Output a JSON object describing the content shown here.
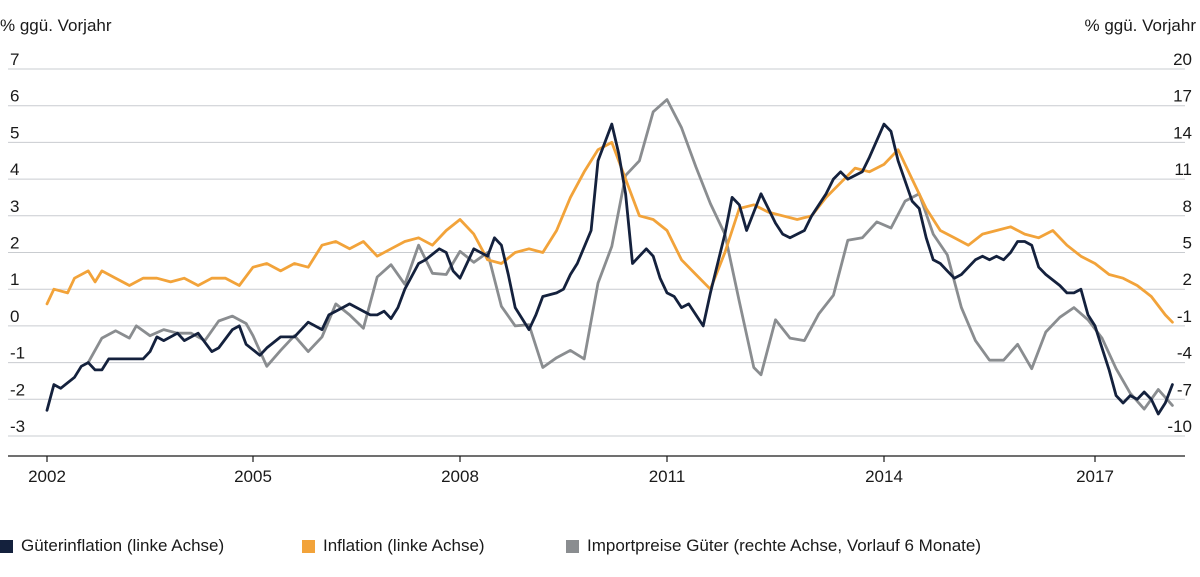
{
  "chart_data": {
    "type": "line",
    "left_axis_title": "% ggü. Vorjahr",
    "right_axis_title": "% ggü. Vorjahr",
    "xlim": [
      2002,
      2018.2
    ],
    "ylim_left": [
      -3,
      7
    ],
    "ylim_right": [
      -10,
      20
    ],
    "x_ticks": [
      "2002",
      "2005",
      "2008",
      "2011",
      "2014",
      "2017"
    ],
    "y_ticks_left": [
      "7",
      "6",
      "5",
      "4",
      "3",
      "2",
      "1",
      "0",
      "-1",
      "-2",
      "-3"
    ],
    "y_ticks_right": [
      "20",
      "17",
      "14",
      "11",
      "8",
      "5",
      "2",
      "-1",
      "-4",
      "-7",
      "-10"
    ],
    "grid": true,
    "legend_position": "bottom",
    "series": [
      {
        "name": "Güterinflation (linke Achse)",
        "axis": "left",
        "color": "#14213d",
        "points": [
          [
            2002.0,
            -2.3
          ],
          [
            2002.1,
            -1.6
          ],
          [
            2002.2,
            -1.7
          ],
          [
            2002.4,
            -1.4
          ],
          [
            2002.5,
            -1.1
          ],
          [
            2002.6,
            -1.0
          ],
          [
            2002.7,
            -1.2
          ],
          [
            2002.8,
            -1.2
          ],
          [
            2002.9,
            -0.9
          ],
          [
            2003.0,
            -0.9
          ],
          [
            2003.2,
            -0.9
          ],
          [
            2003.4,
            -0.9
          ],
          [
            2003.5,
            -0.7
          ],
          [
            2003.6,
            -0.3
          ],
          [
            2003.7,
            -0.4
          ],
          [
            2003.9,
            -0.2
          ],
          [
            2004.0,
            -0.4
          ],
          [
            2004.2,
            -0.2
          ],
          [
            2004.4,
            -0.7
          ],
          [
            2004.5,
            -0.6
          ],
          [
            2004.7,
            -0.1
          ],
          [
            2004.8,
            0.0
          ],
          [
            2004.9,
            -0.5
          ],
          [
            2005.1,
            -0.8
          ],
          [
            2005.2,
            -0.6
          ],
          [
            2005.4,
            -0.3
          ],
          [
            2005.6,
            -0.3
          ],
          [
            2005.7,
            -0.1
          ],
          [
            2005.8,
            0.1
          ],
          [
            2006.0,
            -0.1
          ],
          [
            2006.1,
            0.3
          ],
          [
            2006.3,
            0.5
          ],
          [
            2006.4,
            0.6
          ],
          [
            2006.6,
            0.4
          ],
          [
            2006.7,
            0.3
          ],
          [
            2006.8,
            0.3
          ],
          [
            2006.9,
            0.4
          ],
          [
            2007.0,
            0.2
          ],
          [
            2007.1,
            0.5
          ],
          [
            2007.2,
            1.0
          ],
          [
            2007.4,
            1.7
          ],
          [
            2007.5,
            1.8
          ],
          [
            2007.7,
            2.1
          ],
          [
            2007.8,
            2.0
          ],
          [
            2007.9,
            1.5
          ],
          [
            2008.0,
            1.3
          ],
          [
            2008.1,
            1.7
          ],
          [
            2008.2,
            2.1
          ],
          [
            2008.4,
            1.9
          ],
          [
            2008.5,
            2.4
          ],
          [
            2008.6,
            2.2
          ],
          [
            2008.7,
            1.4
          ],
          [
            2008.8,
            0.5
          ],
          [
            2008.9,
            0.2
          ],
          [
            2009.0,
            -0.1
          ],
          [
            2009.1,
            0.3
          ],
          [
            2009.2,
            0.8
          ],
          [
            2009.4,
            0.9
          ],
          [
            2009.5,
            1.0
          ],
          [
            2009.6,
            1.4
          ],
          [
            2009.7,
            1.7
          ],
          [
            2009.9,
            2.6
          ],
          [
            2010.0,
            4.5
          ],
          [
            2010.2,
            5.5
          ],
          [
            2010.3,
            4.7
          ],
          [
            2010.4,
            3.6
          ],
          [
            2010.5,
            1.7
          ],
          [
            2010.7,
            2.1
          ],
          [
            2010.8,
            1.9
          ],
          [
            2010.9,
            1.3
          ],
          [
            2011.0,
            0.9
          ],
          [
            2011.1,
            0.8
          ],
          [
            2011.2,
            0.5
          ],
          [
            2011.3,
            0.6
          ],
          [
            2011.5,
            0.0
          ],
          [
            2011.6,
            0.9
          ],
          [
            2011.8,
            2.5
          ],
          [
            2011.9,
            3.5
          ],
          [
            2012.0,
            3.3
          ],
          [
            2012.1,
            2.6
          ],
          [
            2012.2,
            3.1
          ],
          [
            2012.3,
            3.6
          ],
          [
            2012.4,
            3.2
          ],
          [
            2012.5,
            2.8
          ],
          [
            2012.6,
            2.5
          ],
          [
            2012.7,
            2.4
          ],
          [
            2012.8,
            2.5
          ],
          [
            2012.9,
            2.6
          ],
          [
            2013.0,
            3.0
          ],
          [
            2013.2,
            3.6
          ],
          [
            2013.3,
            4.0
          ],
          [
            2013.4,
            4.2
          ],
          [
            2013.5,
            4.0
          ],
          [
            2013.7,
            4.2
          ],
          [
            2013.8,
            4.6
          ],
          [
            2014.0,
            5.5
          ],
          [
            2014.1,
            5.3
          ],
          [
            2014.2,
            4.5
          ],
          [
            2014.4,
            3.4
          ],
          [
            2014.5,
            3.2
          ],
          [
            2014.6,
            2.4
          ],
          [
            2014.7,
            1.8
          ],
          [
            2014.8,
            1.7
          ],
          [
            2014.9,
            1.5
          ],
          [
            2015.0,
            1.3
          ],
          [
            2015.1,
            1.4
          ],
          [
            2015.3,
            1.8
          ],
          [
            2015.4,
            1.9
          ],
          [
            2015.5,
            1.8
          ],
          [
            2015.6,
            1.9
          ],
          [
            2015.7,
            1.8
          ],
          [
            2015.8,
            2.0
          ],
          [
            2015.9,
            2.3
          ],
          [
            2016.0,
            2.3
          ],
          [
            2016.1,
            2.2
          ],
          [
            2016.2,
            1.6
          ],
          [
            2016.3,
            1.4
          ],
          [
            2016.5,
            1.1
          ],
          [
            2016.6,
            0.9
          ],
          [
            2016.7,
            0.9
          ],
          [
            2016.8,
            1.0
          ],
          [
            2016.9,
            0.3
          ],
          [
            2017.0,
            0.0
          ],
          [
            2017.1,
            -0.6
          ],
          [
            2017.2,
            -1.2
          ],
          [
            2017.3,
            -1.9
          ],
          [
            2017.4,
            -2.1
          ],
          [
            2017.5,
            -1.9
          ],
          [
            2017.6,
            -2.0
          ],
          [
            2017.7,
            -1.8
          ],
          [
            2017.8,
            -2.0
          ],
          [
            2017.9,
            -2.4
          ],
          [
            2018.0,
            -2.1
          ],
          [
            2018.1,
            -1.6
          ]
        ]
      },
      {
        "name": "Inflation (linke Achse)",
        "axis": "left",
        "color": "#f2a33a",
        "points": [
          [
            2002.0,
            0.6
          ],
          [
            2002.1,
            1.0
          ],
          [
            2002.3,
            0.9
          ],
          [
            2002.4,
            1.3
          ],
          [
            2002.6,
            1.5
          ],
          [
            2002.7,
            1.2
          ],
          [
            2002.8,
            1.5
          ],
          [
            2003.0,
            1.3
          ],
          [
            2003.2,
            1.1
          ],
          [
            2003.4,
            1.3
          ],
          [
            2003.6,
            1.3
          ],
          [
            2003.8,
            1.2
          ],
          [
            2004.0,
            1.3
          ],
          [
            2004.2,
            1.1
          ],
          [
            2004.4,
            1.3
          ],
          [
            2004.6,
            1.3
          ],
          [
            2004.8,
            1.1
          ],
          [
            2005.0,
            1.6
          ],
          [
            2005.2,
            1.7
          ],
          [
            2005.4,
            1.5
          ],
          [
            2005.6,
            1.7
          ],
          [
            2005.8,
            1.6
          ],
          [
            2006.0,
            2.2
          ],
          [
            2006.2,
            2.3
          ],
          [
            2006.4,
            2.1
          ],
          [
            2006.6,
            2.3
          ],
          [
            2006.8,
            1.9
          ],
          [
            2007.0,
            2.1
          ],
          [
            2007.2,
            2.3
          ],
          [
            2007.4,
            2.4
          ],
          [
            2007.6,
            2.2
          ],
          [
            2007.8,
            2.6
          ],
          [
            2008.0,
            2.9
          ],
          [
            2008.2,
            2.5
          ],
          [
            2008.4,
            1.8
          ],
          [
            2008.6,
            1.7
          ],
          [
            2008.8,
            2.0
          ],
          [
            2009.0,
            2.1
          ],
          [
            2009.2,
            2.0
          ],
          [
            2009.4,
            2.6
          ],
          [
            2009.6,
            3.5
          ],
          [
            2009.8,
            4.2
          ],
          [
            2010.0,
            4.8
          ],
          [
            2010.2,
            5.0
          ],
          [
            2010.4,
            4.0
          ],
          [
            2010.6,
            3.0
          ],
          [
            2010.8,
            2.9
          ],
          [
            2011.0,
            2.6
          ],
          [
            2011.2,
            1.8
          ],
          [
            2011.4,
            1.4
          ],
          [
            2011.6,
            1.0
          ],
          [
            2011.8,
            2.0
          ],
          [
            2012.0,
            3.2
          ],
          [
            2012.2,
            3.3
          ],
          [
            2012.4,
            3.1
          ],
          [
            2012.6,
            3.0
          ],
          [
            2012.8,
            2.9
          ],
          [
            2013.0,
            3.0
          ],
          [
            2013.2,
            3.5
          ],
          [
            2013.4,
            3.9
          ],
          [
            2013.6,
            4.3
          ],
          [
            2013.8,
            4.2
          ],
          [
            2014.0,
            4.4
          ],
          [
            2014.2,
            4.8
          ],
          [
            2014.4,
            4.0
          ],
          [
            2014.6,
            3.2
          ],
          [
            2014.8,
            2.6
          ],
          [
            2015.0,
            2.4
          ],
          [
            2015.2,
            2.2
          ],
          [
            2015.4,
            2.5
          ],
          [
            2015.6,
            2.6
          ],
          [
            2015.8,
            2.7
          ],
          [
            2016.0,
            2.5
          ],
          [
            2016.2,
            2.4
          ],
          [
            2016.4,
            2.6
          ],
          [
            2016.6,
            2.2
          ],
          [
            2016.8,
            1.9
          ],
          [
            2017.0,
            1.7
          ],
          [
            2017.2,
            1.4
          ],
          [
            2017.4,
            1.3
          ],
          [
            2017.6,
            1.1
          ],
          [
            2017.8,
            0.8
          ],
          [
            2018.0,
            0.3
          ],
          [
            2018.1,
            0.1
          ]
        ]
      },
      {
        "name": "Importpreise Güter (rechte Achse, Vorlauf 6 Monate)",
        "axis": "right",
        "color": "#8a8d90",
        "points": [
          [
            2002.6,
            -4.0
          ],
          [
            2002.8,
            -2.0
          ],
          [
            2003.0,
            -1.4
          ],
          [
            2003.2,
            -2.0
          ],
          [
            2003.3,
            -1.0
          ],
          [
            2003.5,
            -1.8
          ],
          [
            2003.7,
            -1.3
          ],
          [
            2003.9,
            -1.6
          ],
          [
            2004.1,
            -1.6
          ],
          [
            2004.3,
            -2.2
          ],
          [
            2004.5,
            -0.6
          ],
          [
            2004.7,
            -0.2
          ],
          [
            2004.9,
            -0.8
          ],
          [
            2005.0,
            -1.8
          ],
          [
            2005.2,
            -4.3
          ],
          [
            2005.4,
            -3.0
          ],
          [
            2005.6,
            -1.8
          ],
          [
            2005.8,
            -3.1
          ],
          [
            2006.0,
            -1.9
          ],
          [
            2006.2,
            0.8
          ],
          [
            2006.4,
            -0.1
          ],
          [
            2006.6,
            -1.2
          ],
          [
            2006.8,
            3.0
          ],
          [
            2007.0,
            4.0
          ],
          [
            2007.2,
            2.4
          ],
          [
            2007.4,
            5.6
          ],
          [
            2007.6,
            3.3
          ],
          [
            2007.8,
            3.2
          ],
          [
            2008.0,
            5.1
          ],
          [
            2008.2,
            4.2
          ],
          [
            2008.4,
            5.0
          ],
          [
            2008.6,
            0.6
          ],
          [
            2008.8,
            -1.0
          ],
          [
            2009.0,
            -0.9
          ],
          [
            2009.2,
            -4.4
          ],
          [
            2009.4,
            -3.6
          ],
          [
            2009.6,
            -3.0
          ],
          [
            2009.8,
            -3.7
          ],
          [
            2010.0,
            2.5
          ],
          [
            2010.2,
            5.5
          ],
          [
            2010.4,
            11.3
          ],
          [
            2010.6,
            12.5
          ],
          [
            2010.8,
            16.5
          ],
          [
            2011.0,
            17.5
          ],
          [
            2011.2,
            15.2
          ],
          [
            2011.4,
            12.0
          ],
          [
            2011.6,
            9.0
          ],
          [
            2011.8,
            6.5
          ],
          [
            2012.0,
            1.0
          ],
          [
            2012.2,
            -4.4
          ],
          [
            2012.3,
            -5.0
          ],
          [
            2012.5,
            -0.5
          ],
          [
            2012.7,
            -2.0
          ],
          [
            2012.9,
            -2.2
          ],
          [
            2013.1,
            0.0
          ],
          [
            2013.3,
            1.5
          ],
          [
            2013.5,
            6.0
          ],
          [
            2013.7,
            6.2
          ],
          [
            2013.9,
            7.5
          ],
          [
            2014.1,
            7.0
          ],
          [
            2014.3,
            9.2
          ],
          [
            2014.5,
            9.8
          ],
          [
            2014.7,
            6.5
          ],
          [
            2014.9,
            4.8
          ],
          [
            2015.1,
            0.5
          ],
          [
            2015.3,
            -2.2
          ],
          [
            2015.5,
            -3.8
          ],
          [
            2015.7,
            -3.8
          ],
          [
            2015.9,
            -2.5
          ],
          [
            2016.1,
            -4.5
          ],
          [
            2016.3,
            -1.5
          ],
          [
            2016.5,
            -0.3
          ],
          [
            2016.7,
            0.5
          ],
          [
            2016.9,
            -0.5
          ],
          [
            2017.1,
            -2.0
          ],
          [
            2017.3,
            -4.5
          ],
          [
            2017.5,
            -6.5
          ],
          [
            2017.7,
            -7.8
          ],
          [
            2017.9,
            -6.2
          ],
          [
            2018.1,
            -7.5
          ]
        ]
      }
    ]
  }
}
